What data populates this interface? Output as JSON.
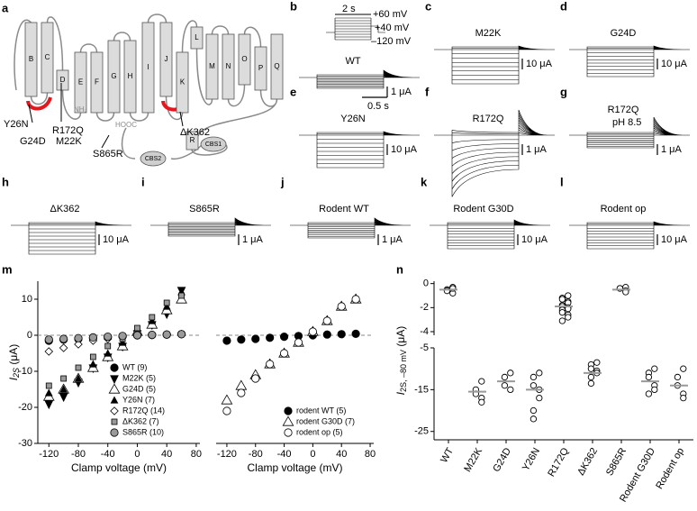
{
  "figure": {
    "panel_a": {
      "label": "a",
      "helices": [
        "B",
        "C",
        "D",
        "E",
        "F",
        "G",
        "H",
        "I",
        "J",
        "K",
        "L",
        "M",
        "N",
        "O",
        "P",
        "Q",
        "R"
      ],
      "domains": [
        "CBS1",
        "CBS2"
      ],
      "termini": [
        "NH₂",
        "HOOC"
      ],
      "mutations": [
        "Y26N",
        "G24D",
        "M22K",
        "R172Q",
        "ΔK362",
        "S865R"
      ]
    },
    "protocol": {
      "time": "2 s",
      "v_top": "+60 mV",
      "v_mid": "+40 mV",
      "v_bottom": "–120 mV"
    },
    "traces": [
      {
        "label": "b",
        "name": "WT",
        "scale": "1 μA",
        "time_scale": "0.5 s"
      },
      {
        "label": "c",
        "name": "M22K",
        "scale": "10 μA"
      },
      {
        "label": "d",
        "name": "G24D",
        "scale": "10 μA"
      },
      {
        "label": "e",
        "name": "Y26N",
        "scale": "10 μA"
      },
      {
        "label": "f",
        "name": "R172Q",
        "scale": "1 μA"
      },
      {
        "label": "g",
        "name": "R172Q",
        "condition": "pH 8.5",
        "scale": "1 μA"
      },
      {
        "label": "h",
        "name": "ΔK362",
        "scale": "10 μA"
      },
      {
        "label": "i",
        "name": "S865R",
        "scale": "1 μA"
      },
      {
        "label": "j",
        "name": "Rodent WT",
        "scale": "1 μA"
      },
      {
        "label": "k",
        "name": "Rodent G30D",
        "scale": "10 μA"
      },
      {
        "label": "l",
        "name": "Rodent op",
        "scale": "10 μA"
      }
    ]
  },
  "chart_data": [
    {
      "type": "line",
      "panel": "m",
      "ylabel": {
        "text": "I",
        "sub": "2S",
        "unit": " (μA)"
      },
      "xlabel": "Clamp voltage (mV)",
      "x": [
        -120,
        -100,
        -80,
        -60,
        -40,
        -20,
        0,
        20,
        40,
        60
      ],
      "xlim": [
        -135,
        85
      ],
      "xticks": [
        -120,
        -80,
        -40,
        0,
        40,
        80
      ],
      "ylim": [
        -30,
        15
      ],
      "yticks": [
        -30,
        -20,
        -10,
        0,
        10
      ],
      "zero_line": true,
      "legend": "lower right",
      "series": [
        {
          "name": "WT (9)",
          "marker": "circle",
          "color": "#000000",
          "values": [
            -1.5,
            -1.2,
            -1,
            -0.8,
            -0.5,
            -0.3,
            0,
            0.1,
            0.2,
            0.3
          ]
        },
        {
          "name": "M22K (5)",
          "marker": "triangle-down",
          "color": "#000000",
          "values": [
            -19,
            -17,
            -13,
            -9,
            -6,
            -3,
            0.5,
            3,
            6,
            12.5
          ]
        },
        {
          "name": "G24D (5)",
          "marker": "triangle-open",
          "color": "#ffffff",
          "values": [
            -17,
            -15,
            -12,
            -9,
            -6,
            -3,
            1,
            3,
            7,
            10
          ]
        },
        {
          "name": "Y26N (7)",
          "marker": "triangle",
          "color": "#000000",
          "values": [
            -16,
            -15,
            -12,
            -8,
            -5,
            -2,
            1,
            4,
            8,
            12
          ]
        },
        {
          "name": "R172Q (14)",
          "marker": "diamond",
          "color": "#ffffff",
          "values": [
            -4.5,
            -3.5,
            -2.5,
            -1.5,
            -1,
            -0.5,
            0,
            0.1,
            0.2,
            0.3
          ]
        },
        {
          "name": "ΔK362 (7)",
          "marker": "square",
          "color": "#9a9a9a",
          "values": [
            -14,
            -12,
            -9,
            -6,
            -3,
            -1,
            2,
            5,
            9,
            11
          ]
        },
        {
          "name": "S865R (10)",
          "marker": "circle",
          "color": "#9a9a9a",
          "values": [
            -1.2,
            -1,
            -0.8,
            -0.6,
            -0.4,
            -0.2,
            0,
            0.1,
            0.2,
            0.3
          ]
        }
      ]
    },
    {
      "type": "line",
      "xlabel": "Clamp voltage (mV)",
      "x": [
        -120,
        -100,
        -80,
        -60,
        -40,
        -20,
        0,
        20,
        40,
        60
      ],
      "xlim": [
        -135,
        85
      ],
      "xticks": [
        -120,
        -80,
        -40,
        0,
        40,
        80
      ],
      "ylim": [
        -30,
        15
      ],
      "zero_line": true,
      "legend": "lower right",
      "series": [
        {
          "name": "rodent WT (5)",
          "marker": "circle",
          "color": "#000000",
          "values": [
            -1.5,
            -1.2,
            -1,
            -0.7,
            -0.4,
            -0.2,
            0,
            0.2,
            0.3,
            0.4
          ]
        },
        {
          "name": "rodent G30D (7)",
          "marker": "triangle-open",
          "color": "#ffffff",
          "values": [
            -18,
            -14,
            -11,
            -8,
            -5,
            -2,
            1,
            4,
            8,
            10
          ]
        },
        {
          "name": "rodent op (5)",
          "marker": "circle-open",
          "color": "#ffffff",
          "values": [
            -21,
            -16,
            -12,
            -8,
            -5,
            -2,
            1,
            4,
            8,
            10
          ]
        }
      ]
    },
    {
      "type": "strip",
      "panel": "n",
      "ylabel": {
        "text": "I",
        "sub": "2S, –80 mV",
        "unit": " (μA)"
      },
      "categories": [
        "WT",
        "M22K",
        "G24D",
        "Y26N",
        "R172Q",
        "ΔK362",
        "S865R",
        "Rodent G30D",
        "Rodent op"
      ],
      "points": [
        [
          -0.3,
          -0.5,
          -0.6,
          -0.8,
          -0.4
        ],
        [
          -13,
          -15,
          -16,
          -17,
          -18
        ],
        [
          -11,
          -12,
          -14,
          -15
        ],
        [
          -11,
          -12,
          -14,
          -15,
          -17,
          -20,
          -22
        ],
        [
          -1,
          -1.2,
          -1.3,
          -1.5,
          -1.6,
          -1.8,
          -1.9,
          -2,
          -2.1,
          -2.2,
          -2.4,
          -2.6,
          -2.8,
          -3.1
        ],
        [
          -8.5,
          -9,
          -10,
          -10.5,
          -11,
          -12,
          -13.5
        ],
        [
          -0.3,
          -0.4,
          -0.4,
          -0.6,
          -0.7
        ],
        [
          -10,
          -11,
          -12,
          -14,
          -15,
          -16
        ],
        [
          -10,
          -12,
          -14,
          -16,
          -17
        ]
      ],
      "means": [
        -0.5,
        -15.5,
        -13,
        -15,
        -1.9,
        -11,
        -0.5,
        -13,
        -14
      ],
      "segments": [
        {
          "ylim": [
            -4.3,
            0.2
          ],
          "yticks": [
            0,
            -2,
            -4
          ]
        },
        {
          "ylim": [
            -27,
            -5
          ],
          "yticks": [
            -5,
            -15,
            -25
          ]
        }
      ]
    }
  ]
}
